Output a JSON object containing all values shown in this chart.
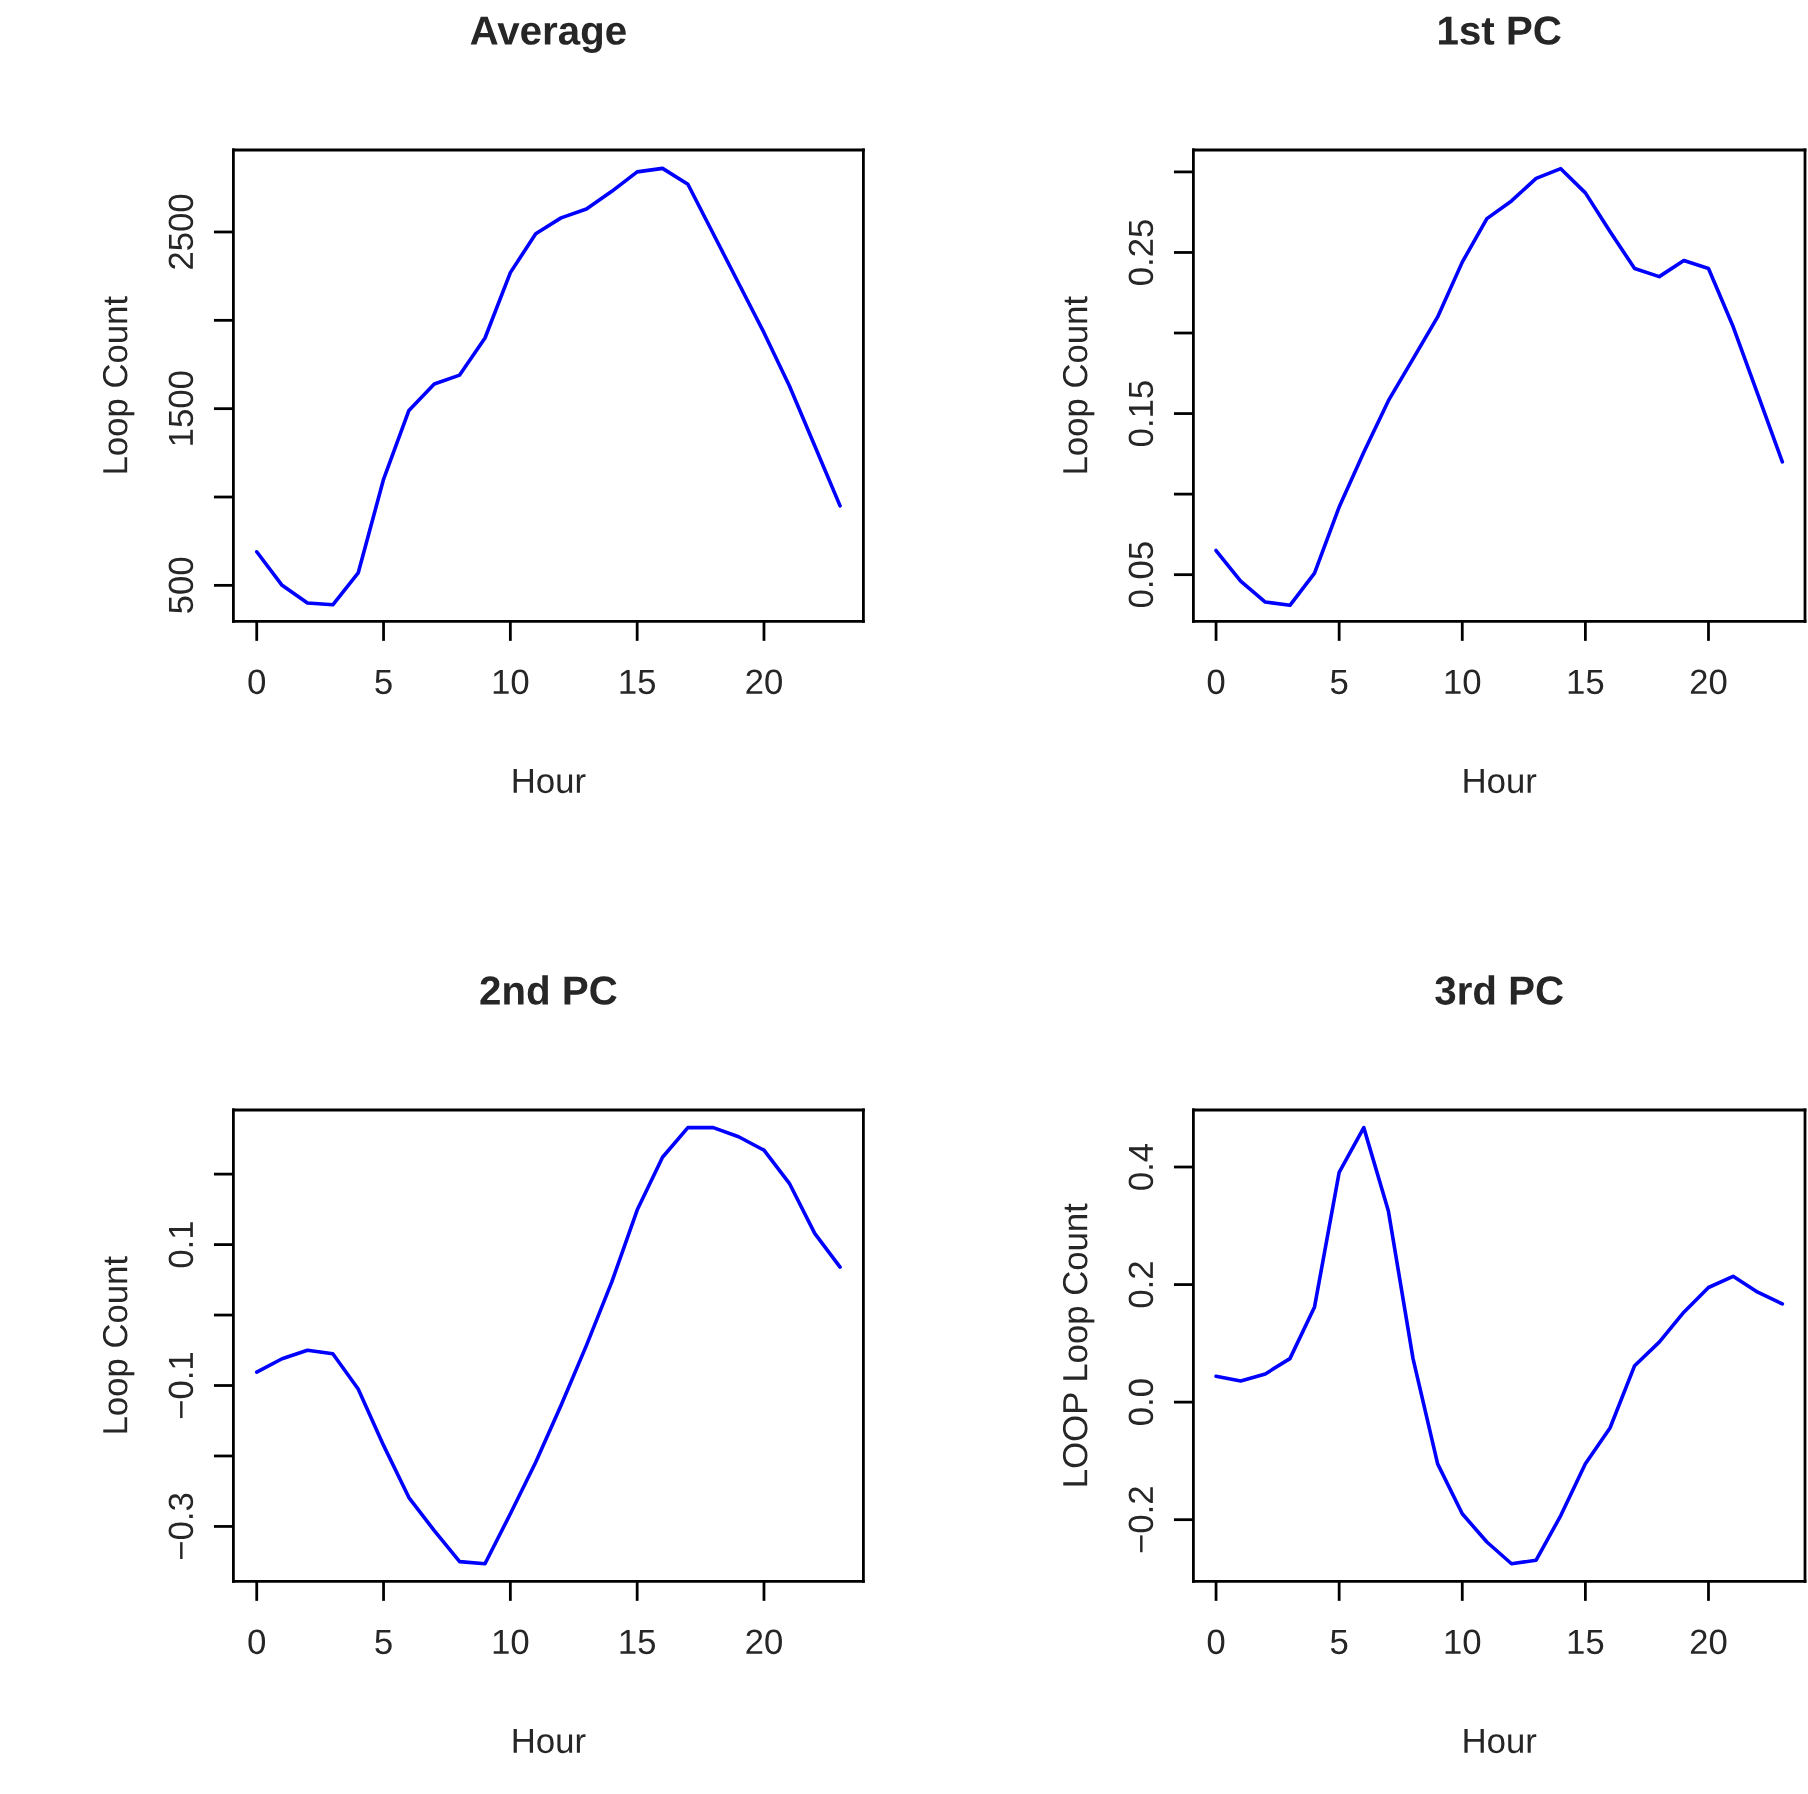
{
  "chart_data": [
    {
      "type": "line",
      "title": "Average",
      "xlabel": "Hour",
      "ylabel": "Loop Count",
      "x": [
        0,
        1,
        2,
        3,
        4,
        5,
        6,
        7,
        8,
        9,
        10,
        11,
        12,
        13,
        14,
        15,
        16,
        17,
        18,
        19,
        20,
        21,
        22,
        23
      ],
      "xlim": [
        -0.92,
        23.92
      ],
      "xticks": [
        0,
        5,
        10,
        15,
        20
      ],
      "ylim": [
        296,
        2964
      ],
      "yticks": [
        500,
        {
          "value": 1000,
          "label": null
        },
        1500,
        {
          "value": 2000,
          "label": null
        },
        2500
      ],
      "series": [
        {
          "color": "#0000ff",
          "values": [
            690,
            500,
            400,
            390,
            570,
            1100,
            1490,
            1640,
            1690,
            1900,
            2270,
            2490,
            2580,
            2630,
            2730,
            2840,
            2860,
            2770,
            2490,
            2210,
            1930,
            1630,
            1290,
            950
          ]
        }
      ]
    },
    {
      "type": "line",
      "title": "1st PC",
      "xlabel": "Hour",
      "ylabel": "Loop Count",
      "x": [
        0,
        1,
        2,
        3,
        4,
        5,
        6,
        7,
        8,
        9,
        10,
        11,
        12,
        13,
        14,
        15,
        16,
        17,
        18,
        19,
        20,
        21,
        22,
        23
      ],
      "xlim": [
        -0.92,
        23.92
      ],
      "xticks": [
        0,
        5,
        10,
        15,
        20
      ],
      "ylim": [
        0.021,
        0.3136
      ],
      "yticks": [
        0.05,
        {
          "value": 0.1,
          "label": null
        },
        0.15,
        {
          "value": 0.2,
          "label": null
        },
        0.25,
        {
          "value": 0.3,
          "label": null
        }
      ],
      "series": [
        {
          "color": "#0000ff",
          "values": [
            0.065,
            0.046,
            0.033,
            0.031,
            0.051,
            0.092,
            0.126,
            0.158,
            0.184,
            0.21,
            0.244,
            0.271,
            0.282,
            0.296,
            0.302,
            0.287,
            0.263,
            0.24,
            0.235,
            0.245,
            0.24,
            0.204,
            0.162,
            0.12
          ]
        }
      ]
    },
    {
      "type": "line",
      "title": "2nd PC",
      "xlabel": "Hour",
      "ylabel": "Loop Count",
      "x": [
        0,
        1,
        2,
        3,
        4,
        5,
        6,
        7,
        8,
        9,
        10,
        11,
        12,
        13,
        14,
        15,
        16,
        17,
        18,
        19,
        20,
        21,
        22,
        23
      ],
      "xlim": [
        -0.92,
        23.92
      ],
      "xticks": [
        0,
        5,
        10,
        15,
        20
      ],
      "ylim": [
        -0.378,
        0.291
      ],
      "yticks": [
        {
          "value": -0.3,
          "label": "−0.3"
        },
        {
          "value": -0.2,
          "label": null
        },
        {
          "value": -0.1,
          "label": "−0.1"
        },
        {
          "value": 0.0,
          "label": null
        },
        0.1,
        {
          "value": 0.2,
          "label": null
        }
      ],
      "series": [
        {
          "color": "#0000ff",
          "values": [
            -0.081,
            -0.062,
            -0.05,
            -0.055,
            -0.105,
            -0.185,
            -0.259,
            -0.306,
            -0.35,
            -0.353,
            -0.282,
            -0.209,
            -0.128,
            -0.043,
            0.047,
            0.149,
            0.224,
            0.266,
            0.266,
            0.253,
            0.234,
            0.187,
            0.116,
            0.068
          ]
        }
      ]
    },
    {
      "type": "line",
      "title": "3rd PC",
      "xlabel": "Hour",
      "ylabel": "LOOP Loop Count",
      "x": [
        0,
        1,
        2,
        3,
        4,
        5,
        6,
        7,
        8,
        9,
        10,
        11,
        12,
        13,
        14,
        15,
        16,
        17,
        18,
        19,
        20,
        21,
        22,
        23
      ],
      "xlim": [
        -0.92,
        23.92
      ],
      "xticks": [
        0,
        5,
        10,
        15,
        20
      ],
      "ylim": [
        -0.305,
        0.497
      ],
      "yticks": [
        {
          "value": -0.2,
          "label": "−0.2"
        },
        {
          "value": 0.0,
          "label": "0.0"
        },
        0.2,
        0.4
      ],
      "series": [
        {
          "color": "#0000ff",
          "values": [
            0.044,
            0.036,
            0.048,
            0.074,
            0.162,
            0.391,
            0.467,
            0.325,
            0.074,
            -0.105,
            -0.19,
            -0.238,
            -0.275,
            -0.269,
            -0.193,
            -0.105,
            -0.044,
            0.062,
            0.102,
            0.153,
            0.195,
            0.214,
            0.187,
            0.167
          ]
        }
      ]
    }
  ]
}
